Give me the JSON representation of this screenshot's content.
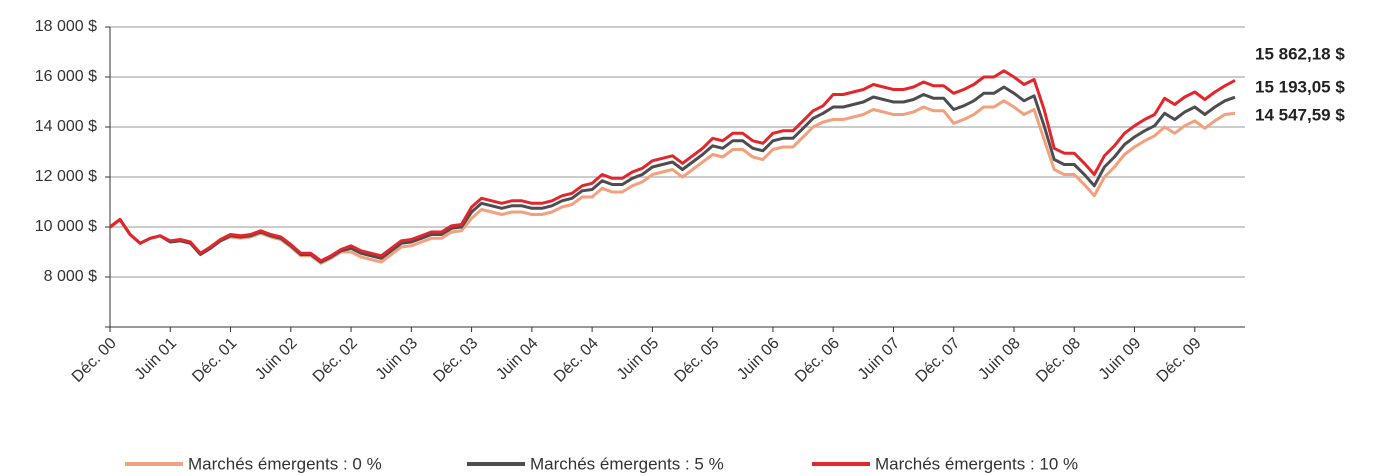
{
  "chart_data": {
    "type": "line",
    "categories": [
      "Déc. 00",
      null,
      null,
      null,
      null,
      null,
      "Juin 01",
      null,
      null,
      null,
      null,
      null,
      "Déc. 01",
      null,
      null,
      null,
      null,
      null,
      "Juin 02",
      null,
      null,
      null,
      null,
      null,
      "Déc. 02",
      null,
      null,
      null,
      null,
      null,
      "Juin 03",
      null,
      null,
      null,
      null,
      null,
      "Déc. 03",
      null,
      null,
      null,
      null,
      null,
      "Juin 04",
      null,
      null,
      null,
      null,
      null,
      "Déc. 04",
      null,
      null,
      null,
      null,
      null,
      "Juin 05",
      null,
      null,
      null,
      null,
      null,
      "Déc. 05",
      null,
      null,
      null,
      null,
      null,
      "Juin 06",
      null,
      null,
      null,
      null,
      null,
      "Déc. 06",
      null,
      null,
      null,
      null,
      null,
      "Juin 07",
      null,
      null,
      null,
      null,
      null,
      "Déc. 07",
      null,
      null,
      null,
      null,
      null,
      "Juin 08",
      null,
      null,
      null,
      null,
      null,
      "Déc. 08",
      null,
      null,
      null,
      null,
      null,
      "Juin 09",
      null,
      null,
      null,
      null,
      null,
      "Déc. 09",
      null,
      null,
      null,
      null
    ],
    "ylim": [
      6000,
      18000
    ],
    "yticks": [
      {
        "value": 8000,
        "label": "8 000 $"
      },
      {
        "value": 10000,
        "label": "10 000 $"
      },
      {
        "value": 12000,
        "label": "12 000 $"
      },
      {
        "value": 14000,
        "label": "14 000 $"
      },
      {
        "value": 16000,
        "label": "16 000 $"
      },
      {
        "value": 18000,
        "label": "18 000 $"
      }
    ],
    "grid": true,
    "legend": "bottom",
    "series": [
      {
        "name": "Marchés émergents : 0 %",
        "color": "#f2a07e",
        "end_label": "14 547,59 $",
        "values": [
          10000,
          10300,
          9700,
          9350,
          9550,
          9650,
          9400,
          9450,
          9350,
          8900,
          9150,
          9450,
          9600,
          9550,
          9600,
          9750,
          9600,
          9500,
          9200,
          8850,
          8850,
          8550,
          8750,
          9000,
          9000,
          8800,
          8700,
          8600,
          8900,
          9200,
          9250,
          9400,
          9550,
          9550,
          9800,
          9850,
          10350,
          10700,
          10600,
          10500,
          10600,
          10600,
          10500,
          10500,
          10600,
          10800,
          10900,
          11200,
          11200,
          11550,
          11400,
          11400,
          11650,
          11800,
          12100,
          12200,
          12300,
          12000,
          12300,
          12600,
          12900,
          12800,
          13100,
          13100,
          12800,
          12700,
          13100,
          13200,
          13200,
          13600,
          14000,
          14200,
          14300,
          14300,
          14400,
          14500,
          14700,
          14600,
          14500,
          14500,
          14600,
          14800,
          14650,
          14650,
          14150,
          14300,
          14500,
          14800,
          14800,
          15050,
          14800,
          14500,
          14700,
          13500,
          12300,
          12100,
          12100,
          11700,
          11250,
          12000,
          12400,
          12900,
          13200,
          13450,
          13650,
          14000,
          13750,
          14050,
          14250,
          13950,
          14250,
          14500,
          14547.59
        ]
      },
      {
        "name": "Marchés émergents : 5 %",
        "color": "#4d4d4f",
        "end_label": "15 193,05 $",
        "values": [
          10000,
          10300,
          9700,
          9350,
          9550,
          9650,
          9400,
          9450,
          9350,
          8900,
          9150,
          9450,
          9650,
          9600,
          9650,
          9800,
          9650,
          9550,
          9250,
          8900,
          8900,
          8600,
          8800,
          9050,
          9150,
          8950,
          8850,
          8750,
          9050,
          9350,
          9400,
          9550,
          9700,
          9700,
          9950,
          10000,
          10600,
          10950,
          10850,
          10750,
          10850,
          10850,
          10750,
          10750,
          10850,
          11050,
          11150,
          11450,
          11500,
          11850,
          11700,
          11700,
          11950,
          12100,
          12400,
          12500,
          12600,
          12300,
          12600,
          12900,
          13250,
          13150,
          13450,
          13450,
          13150,
          13050,
          13450,
          13550,
          13550,
          13950,
          14350,
          14550,
          14800,
          14800,
          14900,
          15000,
          15200,
          15100,
          15000,
          15000,
          15100,
          15300,
          15150,
          15150,
          14700,
          14850,
          15050,
          15350,
          15350,
          15600,
          15350,
          15050,
          15250,
          14050,
          12700,
          12500,
          12500,
          12100,
          11650,
          12400,
          12800,
          13300,
          13600,
          13850,
          14050,
          14550,
          14300,
          14600,
          14800,
          14500,
          14800,
          15050,
          15193.05
        ]
      },
      {
        "name": "Marchés émergents : 10 %",
        "color": "#e3262b",
        "end_label": "15 862,18 $",
        "values": [
          10000,
          10300,
          9700,
          9350,
          9550,
          9650,
          9450,
          9500,
          9400,
          8950,
          9200,
          9500,
          9700,
          9650,
          9700,
          9850,
          9700,
          9600,
          9300,
          8950,
          8950,
          8650,
          8850,
          9100,
          9250,
          9050,
          8950,
          8850,
          9150,
          9450,
          9500,
          9650,
          9800,
          9800,
          10050,
          10100,
          10800,
          11150,
          11050,
          10950,
          11050,
          11050,
          10950,
          10950,
          11050,
          11250,
          11350,
          11650,
          11750,
          12100,
          11950,
          11950,
          12200,
          12350,
          12650,
          12750,
          12850,
          12550,
          12850,
          13150,
          13550,
          13450,
          13750,
          13750,
          13450,
          13350,
          13750,
          13850,
          13850,
          14250,
          14650,
          14850,
          15300,
          15300,
          15400,
          15500,
          15700,
          15600,
          15500,
          15500,
          15600,
          15800,
          15650,
          15650,
          15350,
          15500,
          15700,
          16000,
          16000,
          16250,
          16000,
          15700,
          15900,
          14700,
          13150,
          12950,
          12950,
          12550,
          12100,
          12850,
          13250,
          13750,
          14050,
          14300,
          14500,
          15150,
          14900,
          15200,
          15400,
          15100,
          15400,
          15650,
          15862.18
        ]
      }
    ]
  }
}
